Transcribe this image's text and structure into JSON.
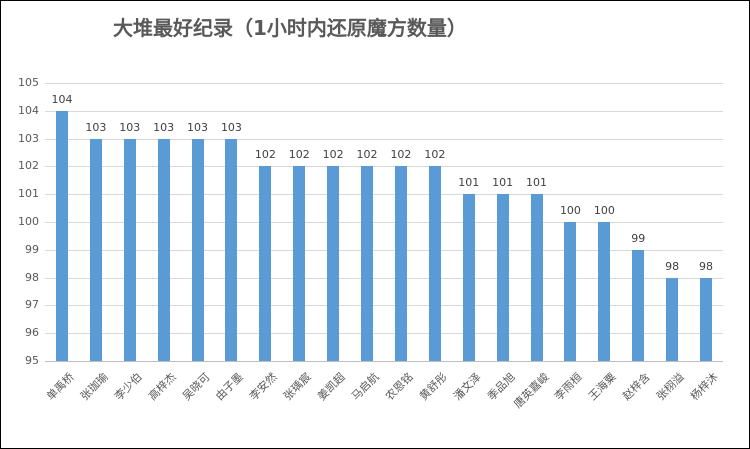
{
  "window": {
    "background_color": "#ffffff",
    "border_color": "#000000"
  },
  "chart_data": {
    "type": "bar",
    "title": "大堆最好纪录（1小时内还原魔方数量）",
    "categories": [
      "单禹桥",
      "张珈瑜",
      "李少伯",
      "高梓杰",
      "吴晓可",
      "由子墨",
      "李安然",
      "张瑀宸",
      "姜凯超",
      "马启航",
      "农恩铭",
      "黄舒彤",
      "潘文泽",
      "季品旭",
      "唐英嘉峻",
      "李雨桓",
      "王海粟",
      "赵梓含",
      "张栩溢",
      "杨梓沐"
    ],
    "values": [
      104,
      103,
      103,
      103,
      103,
      103,
      102,
      102,
      102,
      102,
      102,
      102,
      101,
      101,
      101,
      100,
      100,
      99,
      98,
      98
    ],
    "xlabel": "",
    "ylabel": "",
    "ylim": [
      95,
      105
    ],
    "ytick_step": 1,
    "ytick_labels": [
      "95",
      "96",
      "97",
      "98",
      "99",
      "100",
      "101",
      "102",
      "103",
      "104",
      "105"
    ],
    "grid": true,
    "legend_position": "none",
    "value_labels_shown": true,
    "bar_color": "#5b9bd5",
    "gridline_color": "#d9d9d9",
    "axis_line_color": "#bfbfbf",
    "title_color": "#595959",
    "tick_label_color": "#595959",
    "value_label_color": "#404040"
  }
}
